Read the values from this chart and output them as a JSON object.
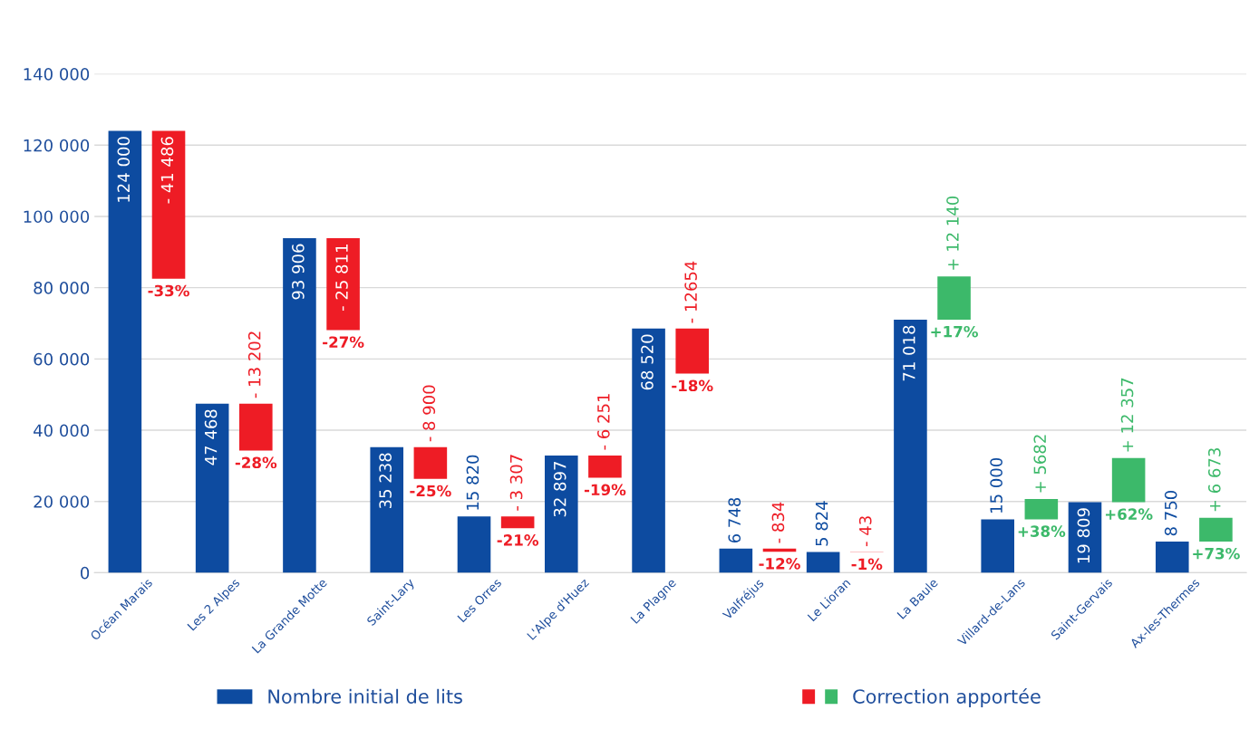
{
  "chart_data": {
    "type": "bar",
    "categories": [
      "Océan Marais",
      "Les 2 Alpes",
      "La Grande Motte",
      "Saint-Lary",
      "Les Orres",
      "L'Alpe d'Huez",
      "La Plagne",
      "Valfréjus",
      "Le Lioran",
      "La Baule",
      "Villard-de-Lans",
      "Saint-Gervais",
      "Ax-les-Thermes"
    ],
    "series": [
      {
        "name": "Nombre initial de lits",
        "color": "#0d4ba0",
        "values": [
          124000,
          47468,
          93906,
          35238,
          15820,
          32897,
          68520,
          6748,
          5824,
          71018,
          15000,
          19809,
          8750
        ],
        "value_labels": [
          "124 000",
          "47 468",
          "93 906",
          "35 238",
          "15 820",
          "32 897",
          "68 520",
          "6 748",
          "5 824",
          "71 018",
          "15 000",
          "19 809",
          "8 750"
        ]
      },
      {
        "name": "Correction apportée",
        "colors": [
          "#ee1c25",
          "#ee1c25",
          "#ee1c25",
          "#ee1c25",
          "#ee1c25",
          "#ee1c25",
          "#ee1c25",
          "#ee1c25",
          "#ee1c25",
          "#3cb96a",
          "#3cb96a",
          "#3cb96a",
          "#3cb96a"
        ],
        "values": [
          -41486,
          -13202,
          -25811,
          -8900,
          -3307,
          -6251,
          -12654,
          -834,
          -43,
          12140,
          5682,
          12357,
          6673
        ],
        "base": [
          124000,
          47468,
          93906,
          35238,
          15820,
          32897,
          68520,
          6748,
          5824,
          71018,
          15000,
          19809,
          8750
        ],
        "value_labels": [
          "- 41 486",
          "- 13 202",
          "- 25 811",
          "- 8 900",
          "- 3 307",
          "- 6 251",
          "- 12654",
          "- 834",
          "- 43",
          "+ 12 140",
          "+ 5682",
          "+ 12 357",
          "+ 6 673"
        ]
      }
    ],
    "annotations": [
      {
        "text": "-33%",
        "x": "Océan Marais",
        "y": 82514
      },
      {
        "text": "-28%",
        "x": "Les 2 Alpes",
        "y": 34266
      },
      {
        "text": "-27%",
        "x": "La Grande Motte",
        "y": 68095
      },
      {
        "text": "-25%",
        "x": "Saint-Lary",
        "y": 26338
      },
      {
        "text": "-21%",
        "x": "Les Orres",
        "y": 12513
      },
      {
        "text": "-19%",
        "x": "L'Alpe d'Huez",
        "y": 26646
      },
      {
        "text": "-18%",
        "x": "La Plagne",
        "y": 55866
      },
      {
        "text": "-12%",
        "x": "Valfréjus",
        "y": 5914
      },
      {
        "text": "-1%",
        "x": "Le Lioran",
        "y": 5781
      },
      {
        "text": "+17%",
        "x": "La Baule",
        "y": 71018
      },
      {
        "text": "+38%",
        "x": "Villard-de-Lans",
        "y": 15000
      },
      {
        "text": "+62%",
        "x": "Saint-Gervais",
        "y": 19809
      },
      {
        "text": "+73%",
        "x": "Ax-les-Thermes",
        "y": 8750
      }
    ],
    "ylim": [
      0,
      140000
    ],
    "yticks": [
      0,
      {
        "value": 20000,
        "label": "20 000"
      },
      {
        "value": 40000,
        "label": "40 000"
      },
      {
        "value": 60000,
        "label": "60 000"
      },
      {
        "value": 80000,
        "label": "80 000"
      },
      {
        "value": 100000,
        "label": "100 000"
      },
      {
        "value": 120000,
        "label": "120 000"
      },
      {
        "value": 140000,
        "label": "140 000"
      }
    ],
    "grid": "y",
    "legend": "bottom"
  }
}
